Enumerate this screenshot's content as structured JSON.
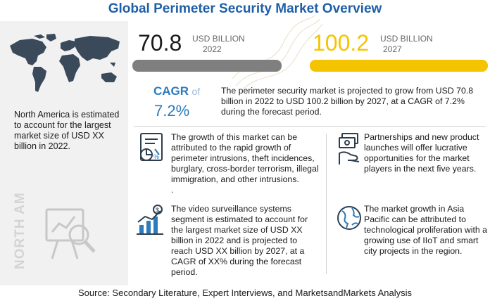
{
  "title": "Global Perimeter Security Market Overview",
  "market": {
    "start": {
      "value": "70.8",
      "unit": "USD BILLION",
      "year": "2022"
    },
    "end": {
      "value": "100.2",
      "unit": "USD BILLION",
      "year": "2027"
    },
    "start_bar_color": "#7f7f7f",
    "end_bar_color": "#f5c400"
  },
  "cagr": {
    "label": "CAGR",
    "of": "of",
    "value": "7.2%"
  },
  "summary": "The perimeter security market is projected to grow from USD 70.8 billion in 2022 to USD 100.2 billion by 2027, at a CAGR of 7.2% during the forecast period.",
  "region_note": "North America is estimated to account for the largest market size of USD XX billion in 2022.",
  "region_label": "NORTH AMERICA",
  "insights": [
    {
      "icon": "growth-drivers-icon",
      "text": "The growth of this market can be attributed to the rapid  growth of perimeter intrusions, theft incidences, burglary, cross-border terrorism, illegal immigration, and other intrusions."
    },
    {
      "icon": "opportunity-money-icon",
      "text": "Partnerships and new product launches will offer lucrative opportunities for the market players in the next five years."
    },
    {
      "icon": "video-surveillance-chart-icon",
      "text": "The video surveillance systems segment is estimated to account for the largest market size of USD XX billion in 2022 and is projected to reach USD XX billion by 2027, at a CAGR of XX% during the forecast period."
    },
    {
      "icon": "globe-icon",
      "text": "The market growth in Asia Pacific can be attributed to technological proliferation with a growing use of IIoT and smart city projects in the region."
    }
  ],
  "stray_mark": ".",
  "source": "Source: Secondary Literature, Expert Interviews, and MarketsandMarkets Analysis"
}
